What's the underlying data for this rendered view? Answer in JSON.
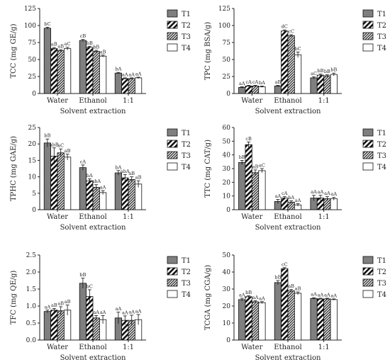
{
  "chart_data": [
    {
      "type": "bar",
      "ylabel": "TCC (mg GE/g)",
      "xlabel": "Solvent extraction",
      "categories": [
        "Water",
        "Ethanol",
        "1:1"
      ],
      "ylim": [
        0,
        125
      ],
      "yticks": [
        0,
        25,
        50,
        75,
        100,
        125
      ],
      "series": [
        {
          "name": "T1",
          "values": [
            96,
            78,
            30
          ],
          "errors": [
            1.5,
            1.5,
            1
          ],
          "labels": [
            "bC",
            "cB",
            "bA"
          ]
        },
        {
          "name": "T2",
          "values": [
            66,
            68,
            22
          ],
          "errors": [
            1.5,
            1.5,
            1
          ],
          "labels": [
            "aB",
            "bB",
            "aA"
          ]
        },
        {
          "name": "T3",
          "values": [
            63,
            62,
            22
          ],
          "errors": [
            1.5,
            1.5,
            1
          ],
          "labels": [
            "aB",
            "bB",
            "aA"
          ]
        },
        {
          "name": "T4",
          "values": [
            66,
            55,
            23
          ],
          "errors": [
            2,
            1.5,
            1
          ],
          "labels": [
            "aC",
            "aB",
            "aA"
          ]
        }
      ]
    },
    {
      "type": "bar",
      "ylabel": "TPC (mg BSA/g)",
      "xlabel": "Solvent extraction",
      "categories": [
        "Water",
        "Ethanol",
        "1:1"
      ],
      "ylim": [
        0,
        125
      ],
      "yticks": [
        0,
        25,
        50,
        75,
        100,
        125
      ],
      "series": [
        {
          "name": "T1",
          "values": [
            9,
            11,
            23
          ],
          "errors": [
            1,
            1,
            1.5
          ],
          "labels": [
            "aA",
            "aB",
            "aC"
          ]
        },
        {
          "name": "T2",
          "values": [
            11,
            92,
            27
          ],
          "errors": [
            1,
            1.5,
            1.5
          ],
          "labels": [
            "cA",
            "dC",
            "bB"
          ]
        },
        {
          "name": "T3",
          "values": [
            11,
            85,
            26
          ],
          "errors": [
            1,
            1.5,
            1.5
          ],
          "labels": [
            "cA",
            "cC",
            "bB"
          ]
        },
        {
          "name": "T4",
          "values": [
            10,
            57,
            28
          ],
          "errors": [
            1,
            4,
            2
          ],
          "labels": [
            "bA",
            "bC",
            "bB"
          ]
        }
      ]
    },
    {
      "type": "bar",
      "ylabel": "TPHC (mg GAE/g)",
      "xlabel": "Solvent extraction",
      "categories": [
        "Water",
        "Ethanol",
        "1:1"
      ],
      "ylim": [
        0,
        25
      ],
      "yticks": [
        0,
        5,
        10,
        15,
        20,
        25
      ],
      "series": [
        {
          "name": "T1",
          "values": [
            20.3,
            12.8,
            11.2
          ],
          "errors": [
            1.2,
            0.8,
            0.7
          ],
          "labels": [
            "bB",
            "cA",
            "bA"
          ]
        },
        {
          "name": "T2",
          "values": [
            16.3,
            8.8,
            9.7
          ],
          "errors": [
            2.5,
            0.6,
            1
          ],
          "labels": [
            "abB",
            "bA",
            "abA"
          ]
        },
        {
          "name": "T3",
          "values": [
            17.3,
            6.8,
            9.2
          ],
          "errors": [
            1.2,
            0.8,
            0.8
          ],
          "labels": [
            "aC",
            "abA",
            "aB"
          ]
        },
        {
          "name": "T4",
          "values": [
            16,
            5.2,
            7.8
          ],
          "errors": [
            0.9,
            0.6,
            1
          ],
          "labels": [
            "aB",
            "aA",
            "aB"
          ]
        }
      ]
    },
    {
      "type": "bar",
      "ylabel": "TTC (mg CAT/g)",
      "xlabel": "Solvent extraction",
      "categories": [
        "Water",
        "Ethanol",
        "1:1"
      ],
      "ylim": [
        0,
        60
      ],
      "yticks": [
        0,
        10,
        20,
        30,
        40,
        50,
        60
      ],
      "series": [
        {
          "name": "T1",
          "values": [
            34.5,
            6,
            8.5
          ],
          "errors": [
            1.5,
            1.5,
            2
          ],
          "labels": [
            "bB",
            "aA",
            "aA"
          ]
        },
        {
          "name": "T2",
          "values": [
            47.5,
            8.5,
            8.5
          ],
          "errors": [
            2,
            1,
            2
          ],
          "labels": [
            "cB",
            "cA",
            "aA"
          ]
        },
        {
          "name": "T3",
          "values": [
            27,
            5.5,
            8
          ],
          "errors": [
            2,
            1,
            1.5
          ],
          "labels": [
            "aB",
            "bA",
            "aA"
          ]
        },
        {
          "name": "T4",
          "values": [
            28.5,
            3.5,
            8
          ],
          "errors": [
            1.5,
            1,
            1
          ],
          "labels": [
            "aC",
            "aA",
            "aA"
          ]
        }
      ]
    },
    {
      "type": "bar",
      "ylabel": "TFC (mg QE/g)",
      "xlabel": "Solvent extraction",
      "categories": [
        "Water",
        "Ethanol",
        "1:1"
      ],
      "ylim": [
        0,
        2.5
      ],
      "yticks": [
        "0.0",
        "0.5",
        "1.0",
        "1.5",
        "2.0",
        "2.5"
      ],
      "series": [
        {
          "name": "T1",
          "values": [
            0.84,
            1.67,
            0.65
          ],
          "errors": [
            0.04,
            0.15,
            0.17
          ],
          "labels": [
            "aA",
            "bB",
            "aA"
          ]
        },
        {
          "name": "T2",
          "values": [
            0.88,
            1.28,
            0.58
          ],
          "errors": [
            0.05,
            0.2,
            0.13
          ],
          "labels": [
            "aB",
            "bC",
            "aA"
          ]
        },
        {
          "name": "T3",
          "values": [
            0.86,
            0.65,
            0.58
          ],
          "errors": [
            0.12,
            0.07,
            0.15
          ],
          "labels": [
            "aB",
            "aA",
            "aA"
          ]
        },
        {
          "name": "T4",
          "values": [
            0.88,
            0.6,
            0.6
          ],
          "errors": [
            0.15,
            0.12,
            0.15
          ],
          "labels": [
            "aB",
            "aA",
            "aA"
          ]
        }
      ]
    },
    {
      "type": "bar",
      "ylabel": "TCGA (mg CGA/g)",
      "xlabel": "Solvent extraction",
      "categories": [
        "Water",
        "Ethanol",
        "1:1"
      ],
      "ylim": [
        0,
        50
      ],
      "yticks": [
        0,
        10,
        20,
        30,
        40,
        50
      ],
      "series": [
        {
          "name": "T1",
          "values": [
            23.8,
            33.8,
            24.5
          ],
          "errors": [
            0.8,
            1.2,
            0.4
          ],
          "labels": [
            "aA",
            "bB",
            "aA"
          ]
        },
        {
          "name": "T2",
          "values": [
            25.5,
            42,
            24.2
          ],
          "errors": [
            0.5,
            0.6,
            0.4
          ],
          "labels": [
            "bB",
            "cC",
            "aA"
          ]
        },
        {
          "name": "T3",
          "values": [
            22.5,
            29,
            24.2
          ],
          "errors": [
            0.6,
            0.8,
            0.4
          ],
          "labels": [
            "aA",
            "aB",
            "aA"
          ]
        },
        {
          "name": "T4",
          "values": [
            22,
            27.5,
            23.8
          ],
          "errors": [
            0.6,
            0.8,
            0.4
          ],
          "labels": [
            "aA",
            "aB",
            "aA"
          ]
        }
      ]
    }
  ]
}
